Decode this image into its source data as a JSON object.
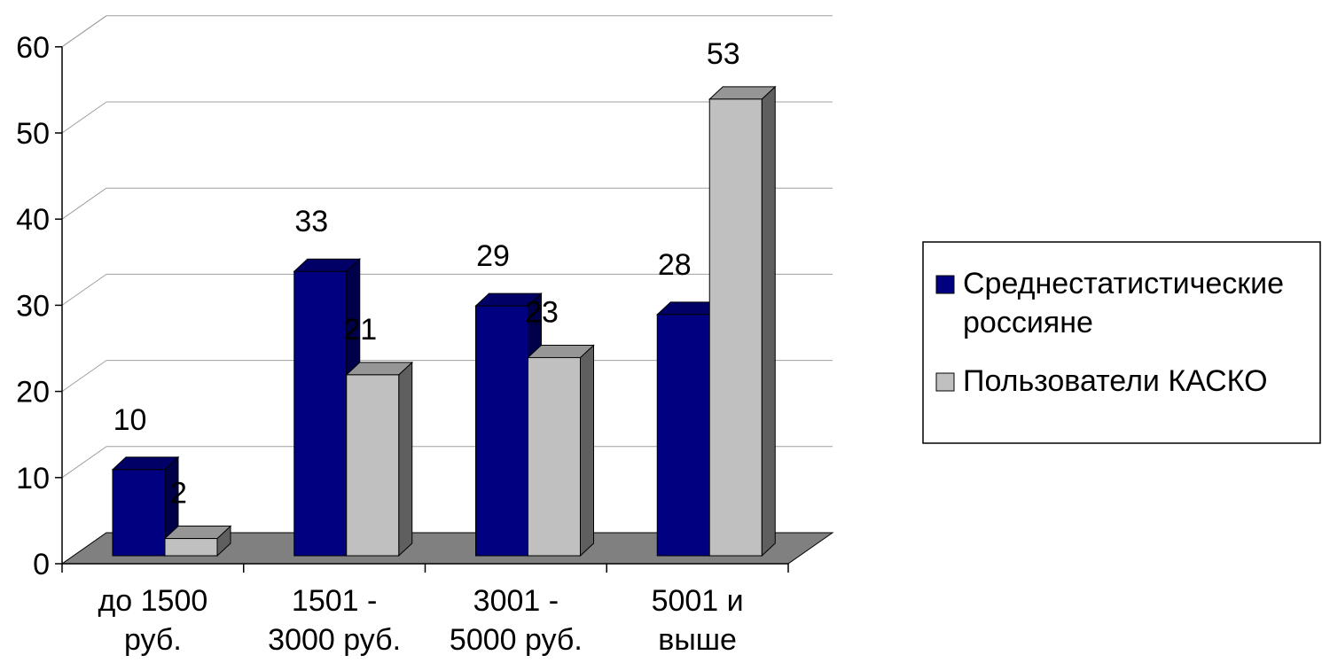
{
  "chart_data": {
    "type": "bar",
    "style": "3d-clustered-column",
    "categories": [
      [
        "до 1500",
        "руб."
      ],
      [
        "1501 -",
        "3000 руб."
      ],
      [
        "3001 -",
        "5000 руб."
      ],
      [
        "5001 и",
        "выше"
      ]
    ],
    "series": [
      {
        "name": "Среднестатистические россияне",
        "legend_lines": [
          "Среднестатистические",
          "россияне"
        ],
        "values": [
          10,
          33,
          29,
          28
        ],
        "color": "#000080"
      },
      {
        "name": "Пользователи КАСКО",
        "legend_lines": [
          "Пользователи КАСКО"
        ],
        "values": [
          2,
          21,
          23,
          53
        ],
        "color": "#C0C0C0"
      }
    ],
    "data_labels": [
      [
        "10",
        "33",
        "29",
        "28"
      ],
      [
        "2",
        "21",
        "23",
        "53"
      ]
    ],
    "ylim": [
      0,
      60
    ],
    "yticks": [
      "0",
      "10",
      "20",
      "30",
      "40",
      "50",
      "60"
    ],
    "grid": true,
    "legend_position": "right",
    "floor_color": "#808080"
  }
}
